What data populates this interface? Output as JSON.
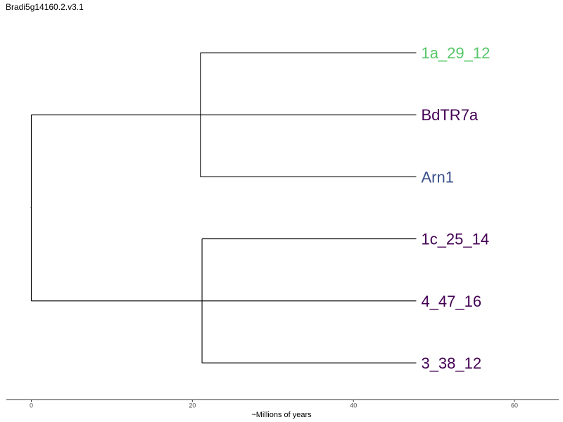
{
  "chart_data": {
    "type": "dendrogram",
    "title": "Bradi5g14160.2.v3.1",
    "xlabel": "~Millions of years",
    "xlim": [
      -3.1,
      65.5
    ],
    "xticks": [
      0,
      20,
      40,
      60
    ],
    "grid": false,
    "tips": [
      {
        "label": "1a_29_12",
        "color": "#55c667",
        "x": 47.8
      },
      {
        "label": "BdTR7a",
        "color": "#440154",
        "x": 47.8
      },
      {
        "label": "Arn1",
        "color": "#3b528b",
        "x": 47.8
      },
      {
        "label": "1c_25_14",
        "color": "#440154",
        "x": 47.8
      },
      {
        "label": "4_47_16",
        "color": "#440154",
        "x": 47.8
      },
      {
        "label": "3_38_12",
        "color": "#440154",
        "x": 47.8
      }
    ],
    "nodes": [
      {
        "name": "root",
        "x": 0,
        "children": [
          "clade_a",
          "clade_b"
        ]
      },
      {
        "name": "clade_a",
        "x": 21.0,
        "children": [
          "1a_29_12",
          "BdTR7a",
          "Arn1"
        ]
      },
      {
        "name": "clade_b",
        "x": 21.2,
        "children": [
          "1c_25_14",
          "4_47_16",
          "3_38_12"
        ]
      }
    ]
  }
}
